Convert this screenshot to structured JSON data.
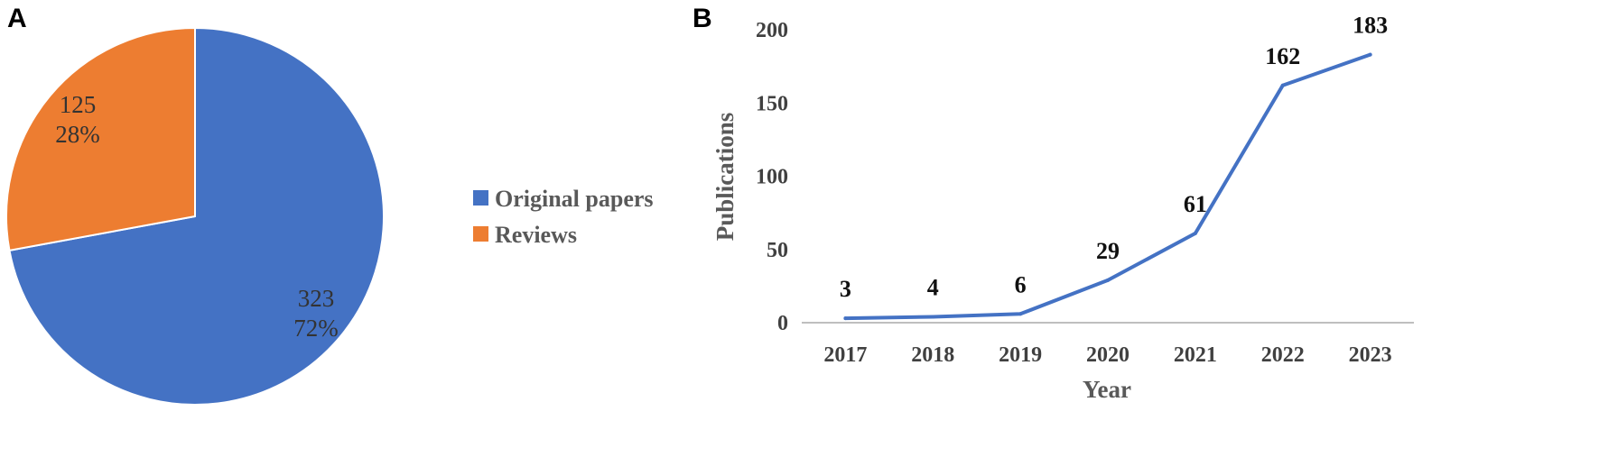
{
  "panels": {
    "a_label": "A",
    "b_label": "B"
  },
  "chart_data": [
    {
      "type": "pie",
      "categories": [
        "Original papers",
        "Reviews"
      ],
      "values": [
        323,
        125
      ],
      "percent_labels": [
        "72%",
        "28%"
      ],
      "colors": [
        "#4472c4",
        "#ed7d31"
      ],
      "start": "12 o'clock",
      "direction": "clockwise",
      "legend_position": "right",
      "title": ""
    },
    {
      "type": "line",
      "x": [
        "2017",
        "2018",
        "2019",
        "2020",
        "2021",
        "2022",
        "2023"
      ],
      "series": [
        {
          "values": [
            3,
            4,
            6,
            29,
            61,
            162,
            183
          ],
          "color": "#4472c4"
        }
      ],
      "data_labels": [
        "3",
        "4",
        "6",
        "29",
        "61",
        "162",
        "183"
      ],
      "xlabel": "Year",
      "ylabel": "Publications",
      "ylim": [
        0,
        200
      ],
      "yticks": [
        "0",
        "50",
        "100",
        "150",
        "200"
      ],
      "grid": false,
      "title": ""
    }
  ]
}
